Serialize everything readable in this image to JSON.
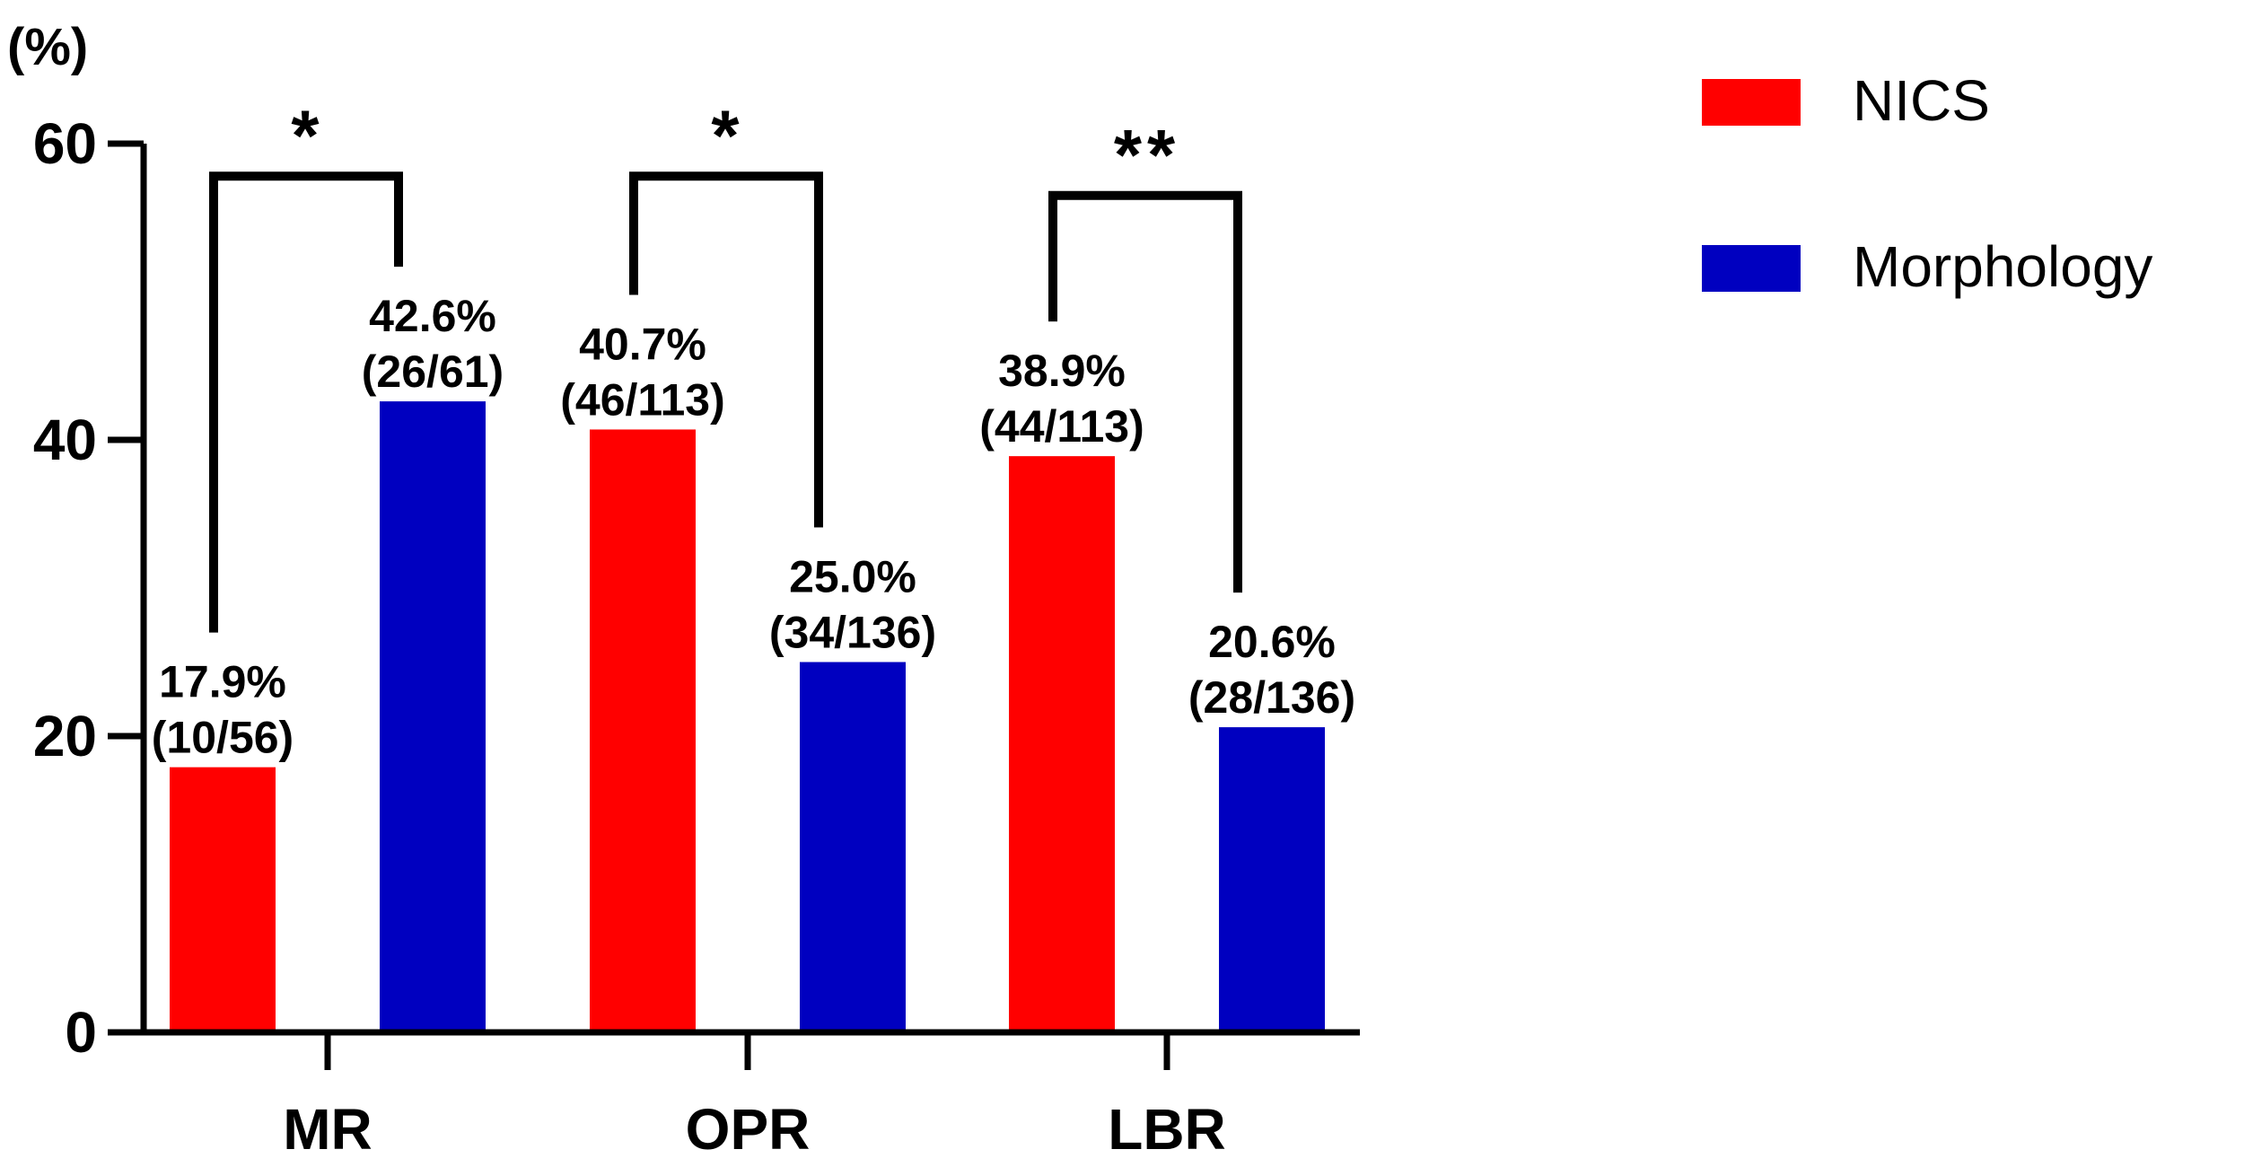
{
  "chart_data": {
    "type": "bar",
    "categories": [
      "MR",
      "OPR",
      "LBR"
    ],
    "series": [
      {
        "name": "NICS",
        "color": "#ff0000",
        "values": [
          17.9,
          40.7,
          38.9
        ],
        "labels": [
          "17.9%",
          "40.7%",
          "38.9%"
        ],
        "fractions": [
          "(10/56)",
          "(46/113)",
          "(44/113)"
        ]
      },
      {
        "name": "Morphology",
        "color": "#0000c0",
        "values": [
          42.6,
          25.0,
          20.6
        ],
        "labels": [
          "42.6%",
          "25.0%",
          "20.6%"
        ],
        "fractions": [
          "(26/61)",
          "(34/136)",
          "(28/136)"
        ]
      }
    ],
    "ylabel": "(%)",
    "ylim": [
      0,
      60
    ],
    "yticks": [
      "0",
      "20",
      "40",
      "60"
    ],
    "significance": [
      "*",
      "*",
      "**"
    ],
    "legend_position": "top-right",
    "grid": false
  }
}
